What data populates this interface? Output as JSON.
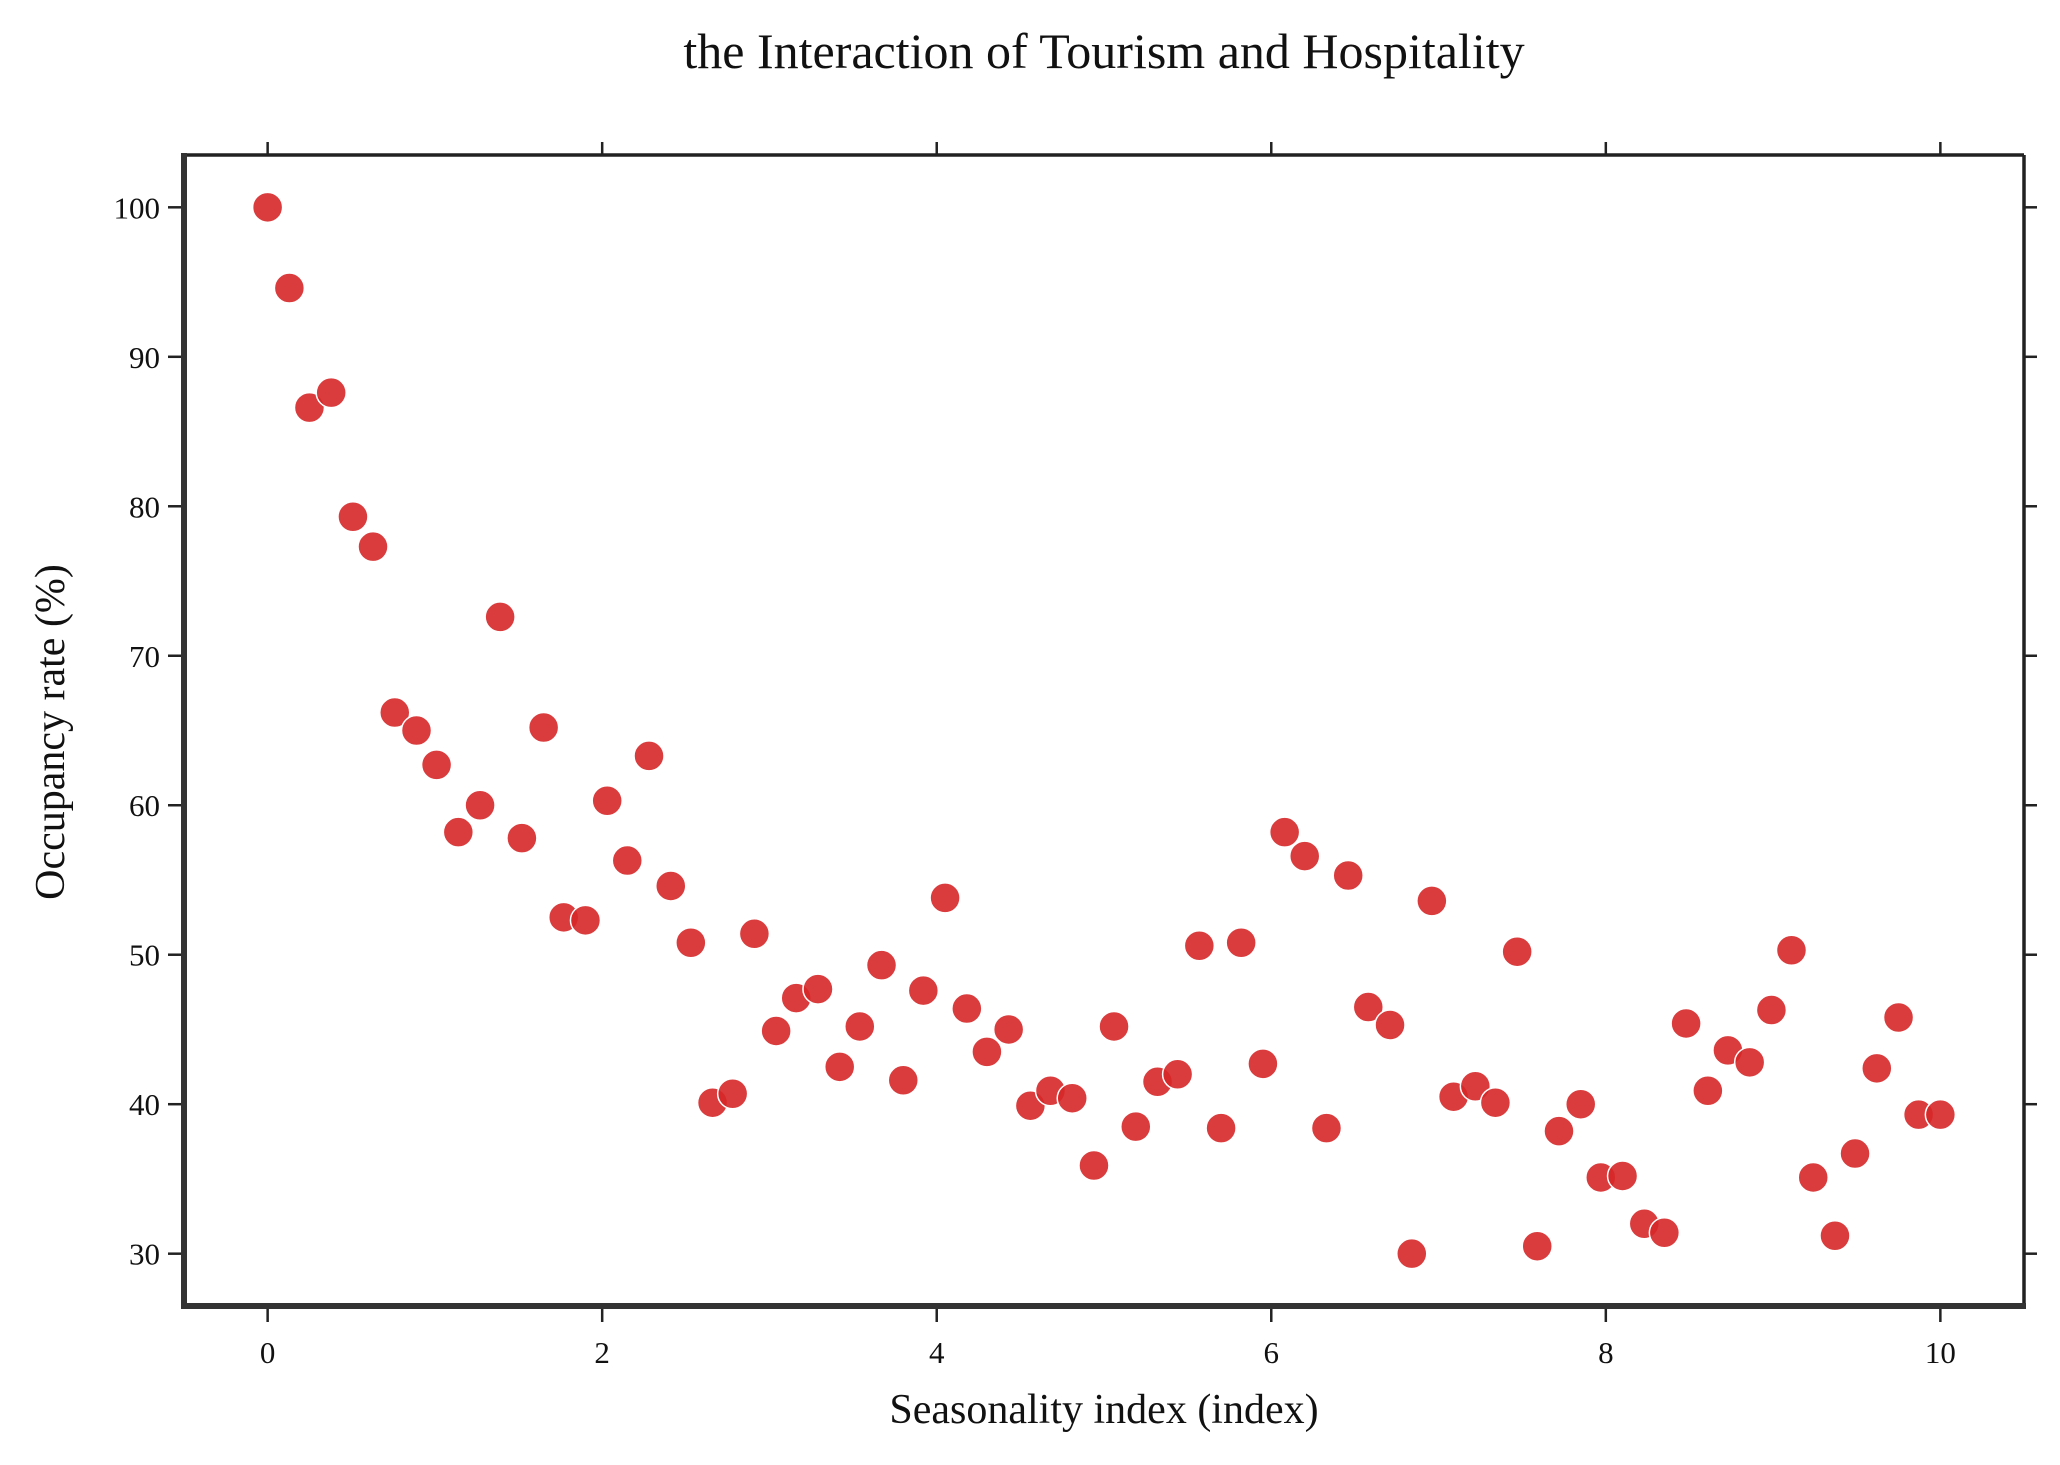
{
  "chart_data": {
    "type": "scatter",
    "title": "the Interaction of Tourism and Hospitality",
    "xlabel": "Seasonality index (index)",
    "ylabel": "Occupancy rate (%)",
    "xlim": [
      -0.5,
      10.5
    ],
    "ylim": [
      26.5,
      103.5
    ],
    "x_ticks": [
      0,
      2,
      4,
      6,
      8,
      10
    ],
    "y_ticks": [
      30,
      40,
      50,
      60,
      70,
      80,
      90,
      100
    ],
    "grid": false,
    "legend": "none",
    "marker_color": "#d62728",
    "series": [
      {
        "x": [
          0.0,
          0.13,
          0.25,
          0.38,
          0.51,
          0.63,
          0.76,
          0.89,
          1.01,
          1.14,
          1.27,
          1.39,
          1.52,
          1.65,
          1.77,
          1.9,
          2.03,
          2.15,
          2.28,
          2.41,
          2.53,
          2.66,
          2.78,
          2.91,
          3.04,
          3.16,
          3.29,
          3.42,
          3.54,
          3.67,
          3.8,
          3.92,
          4.05,
          4.18,
          4.3,
          4.43,
          4.56,
          4.68,
          4.81,
          4.94,
          5.06,
          5.19,
          5.32,
          5.44,
          5.57,
          5.7,
          5.82,
          5.95,
          6.08,
          6.2,
          6.33,
          6.46,
          6.58,
          6.71,
          6.84,
          6.96,
          7.09,
          7.22,
          7.34,
          7.47,
          7.59,
          7.72,
          7.85,
          7.97,
          8.1,
          8.23,
          8.35,
          8.48,
          8.61,
          8.73,
          8.86,
          8.99,
          9.11,
          9.24,
          9.37,
          9.49,
          9.62,
          9.75,
          9.87,
          10.0
        ],
        "y": [
          100.0,
          94.6,
          86.6,
          87.6,
          79.3,
          77.3,
          66.2,
          65.0,
          62.7,
          58.2,
          60.0,
          72.6,
          57.8,
          65.2,
          52.5,
          52.3,
          60.3,
          56.3,
          63.3,
          54.6,
          50.8,
          40.1,
          40.7,
          51.4,
          44.9,
          47.1,
          47.7,
          42.5,
          45.2,
          49.3,
          41.6,
          47.6,
          53.8,
          46.4,
          43.5,
          45.0,
          39.9,
          40.9,
          40.4,
          35.9,
          45.2,
          38.5,
          41.5,
          42.0,
          50.6,
          38.4,
          50.8,
          42.7,
          58.2,
          56.6,
          38.4,
          55.3,
          46.5,
          45.3,
          30.0,
          53.6,
          40.5,
          41.2,
          40.1,
          50.2,
          30.5,
          38.2,
          40.0,
          35.1,
          35.2,
          32.0,
          31.4,
          45.4,
          40.9,
          43.6,
          42.8,
          46.3,
          50.3,
          35.1,
          31.2,
          36.7,
          42.4,
          45.8,
          39.3,
          39.3
        ]
      }
    ]
  }
}
